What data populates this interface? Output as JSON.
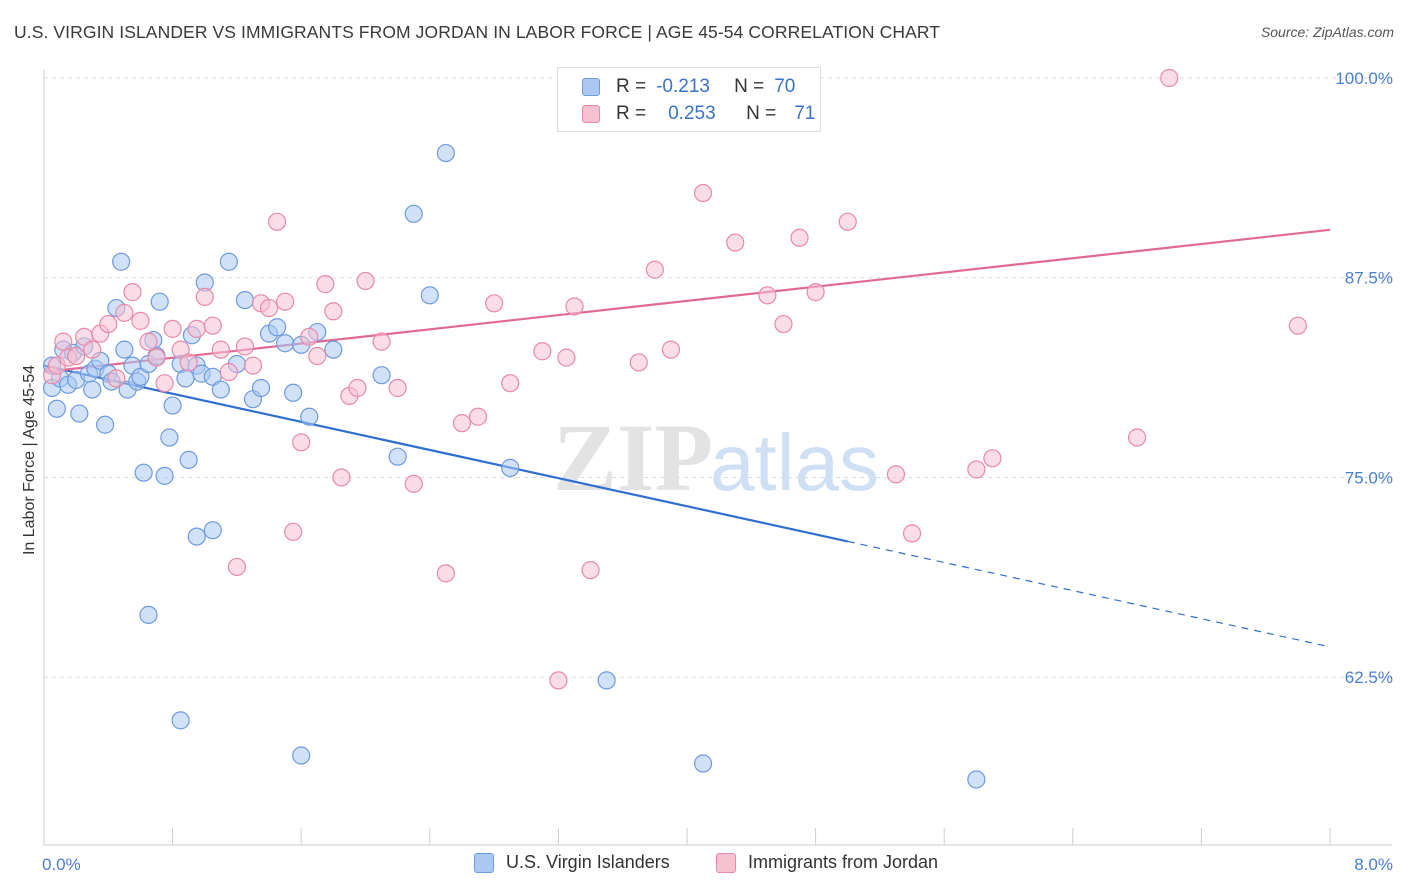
{
  "title": "U.S. VIRGIN ISLANDER VS IMMIGRANTS FROM JORDAN IN LABOR FORCE | AGE 45-54 CORRELATION CHART",
  "source": "Source: ZipAtlas.com",
  "colors": {
    "blue_fill": "#aac8f2",
    "blue_stroke": "#6e9be0",
    "blue_line": "#2f6fd0",
    "pink_fill": "#f6c1d1",
    "pink_stroke": "#e88aa8",
    "pink_line": "#e06a94",
    "tick_text": "#4a7fd0",
    "grid": "#dcdcdc"
  },
  "legend": {
    "rows": [
      {
        "r_label": "R =",
        "r_value": "-0.213",
        "n_label": "N =",
        "n_value": "70"
      },
      {
        "r_label": "R =",
        "r_value": "0.253",
        "n_label": "N =",
        "n_value": "71"
      }
    ]
  },
  "watermark": {
    "zip": "ZIP",
    "atlas": "atlas"
  },
  "chart_data": {
    "type": "scatter",
    "xlabel": "",
    "ylabel": "In Labor Force | Age 45-54",
    "xlim": [
      0,
      8
    ],
    "ylim": [
      52,
      101
    ],
    "x_tick_labels": [
      {
        "value": 0,
        "label": "0.0%"
      },
      {
        "value": 8,
        "label": "8.0%"
      }
    ],
    "y_tick_labels": [
      {
        "value": 100,
        "label": "100.0%"
      },
      {
        "value": 87.5,
        "label": "87.5%"
      },
      {
        "value": 75,
        "label": "75.0%"
      },
      {
        "value": 62.5,
        "label": "62.5%"
      }
    ],
    "grid": "horizontal dashed",
    "series": [
      {
        "name": "U.S. Virgin Islanders",
        "color": "#6e9be0",
        "trend": {
          "x0": 0,
          "y0": 82.0,
          "x1": 5.0,
          "y1": 71.0,
          "dashed_to_x": 8.0,
          "dashed_to_y": 64.4
        },
        "points": [
          [
            0.05,
            82.0
          ],
          [
            0.05,
            80.6
          ],
          [
            0.08,
            79.3
          ],
          [
            0.1,
            81.2
          ],
          [
            0.12,
            83.0
          ],
          [
            0.15,
            80.8
          ],
          [
            0.18,
            82.8
          ],
          [
            0.2,
            81.1
          ],
          [
            0.22,
            79.0
          ],
          [
            0.25,
            83.2
          ],
          [
            0.28,
            81.5
          ],
          [
            0.3,
            80.5
          ],
          [
            0.32,
            81.8
          ],
          [
            0.35,
            82.3
          ],
          [
            0.38,
            78.3
          ],
          [
            0.4,
            81.5
          ],
          [
            0.42,
            81.0
          ],
          [
            0.45,
            85.6
          ],
          [
            0.48,
            88.5
          ],
          [
            0.5,
            83.0
          ],
          [
            0.52,
            80.5
          ],
          [
            0.55,
            82.0
          ],
          [
            0.58,
            81.0
          ],
          [
            0.6,
            81.3
          ],
          [
            0.62,
            75.3
          ],
          [
            0.65,
            82.1
          ],
          [
            0.68,
            83.6
          ],
          [
            0.7,
            82.6
          ],
          [
            0.72,
            86.0
          ],
          [
            0.75,
            75.1
          ],
          [
            0.78,
            77.5
          ],
          [
            0.8,
            79.5
          ],
          [
            0.85,
            82.1
          ],
          [
            0.88,
            81.2
          ],
          [
            0.9,
            76.1
          ],
          [
            0.92,
            83.9
          ],
          [
            0.95,
            82.0
          ],
          [
            0.98,
            81.5
          ],
          [
            1.0,
            87.2
          ],
          [
            1.05,
            81.3
          ],
          [
            1.1,
            80.5
          ],
          [
            1.15,
            88.5
          ],
          [
            1.2,
            82.1
          ],
          [
            1.25,
            86.1
          ],
          [
            1.3,
            79.9
          ],
          [
            1.35,
            80.6
          ],
          [
            1.4,
            84.0
          ],
          [
            1.45,
            84.4
          ],
          [
            1.5,
            83.4
          ],
          [
            1.55,
            80.3
          ],
          [
            1.6,
            83.3
          ],
          [
            1.65,
            78.8
          ],
          [
            1.7,
            84.1
          ],
          [
            1.8,
            83.0
          ],
          [
            2.1,
            81.4
          ],
          [
            2.2,
            76.3
          ],
          [
            2.3,
            91.5
          ],
          [
            2.4,
            86.4
          ],
          [
            2.5,
            95.3
          ],
          [
            2.9,
            75.6
          ],
          [
            3.7,
            100.0
          ],
          [
            4.4,
            99.0
          ],
          [
            0.65,
            66.4
          ],
          [
            0.85,
            59.8
          ],
          [
            1.05,
            71.7
          ],
          [
            0.95,
            71.3
          ],
          [
            1.6,
            57.6
          ],
          [
            3.5,
            62.3
          ],
          [
            4.1,
            57.1
          ],
          [
            5.8,
            56.1
          ]
        ]
      },
      {
        "name": "Immigrants from Jordan",
        "color": "#e88aa8",
        "trend": {
          "x0": 0,
          "y0": 81.6,
          "x1": 8.0,
          "y1": 90.5
        },
        "points": [
          [
            0.05,
            81.4
          ],
          [
            0.08,
            82.0
          ],
          [
            0.12,
            83.5
          ],
          [
            0.15,
            82.5
          ],
          [
            0.2,
            82.6
          ],
          [
            0.25,
            83.8
          ],
          [
            0.3,
            83.0
          ],
          [
            0.35,
            84.0
          ],
          [
            0.4,
            84.6
          ],
          [
            0.45,
            81.2
          ],
          [
            0.5,
            85.3
          ],
          [
            0.55,
            86.6
          ],
          [
            0.6,
            84.8
          ],
          [
            0.65,
            83.5
          ],
          [
            0.7,
            82.5
          ],
          [
            0.75,
            80.9
          ],
          [
            0.8,
            84.3
          ],
          [
            0.85,
            83.0
          ],
          [
            0.9,
            82.2
          ],
          [
            0.95,
            84.3
          ],
          [
            1.0,
            86.3
          ],
          [
            1.05,
            84.5
          ],
          [
            1.1,
            83.0
          ],
          [
            1.15,
            81.6
          ],
          [
            1.2,
            69.4
          ],
          [
            1.25,
            83.2
          ],
          [
            1.3,
            82.0
          ],
          [
            1.35,
            85.9
          ],
          [
            1.4,
            85.6
          ],
          [
            1.45,
            91.0
          ],
          [
            1.5,
            86.0
          ],
          [
            1.55,
            71.6
          ],
          [
            1.6,
            77.2
          ],
          [
            1.65,
            83.8
          ],
          [
            1.7,
            82.6
          ],
          [
            1.75,
            87.1
          ],
          [
            1.8,
            85.4
          ],
          [
            1.85,
            75.0
          ],
          [
            1.9,
            80.1
          ],
          [
            1.95,
            80.6
          ],
          [
            2.0,
            87.3
          ],
          [
            2.1,
            83.5
          ],
          [
            2.2,
            80.6
          ],
          [
            2.3,
            74.6
          ],
          [
            2.5,
            69.0
          ],
          [
            2.6,
            78.4
          ],
          [
            2.7,
            78.8
          ],
          [
            2.8,
            85.9
          ],
          [
            2.9,
            80.9
          ],
          [
            3.1,
            82.9
          ],
          [
            3.2,
            62.3
          ],
          [
            3.25,
            82.5
          ],
          [
            3.3,
            85.7
          ],
          [
            3.4,
            69.2
          ],
          [
            3.7,
            82.2
          ],
          [
            3.8,
            88.0
          ],
          [
            3.9,
            83.0
          ],
          [
            4.1,
            92.8
          ],
          [
            4.3,
            89.7
          ],
          [
            4.5,
            86.4
          ],
          [
            4.6,
            84.6
          ],
          [
            4.7,
            90.0
          ],
          [
            4.8,
            86.6
          ],
          [
            5.0,
            91.0
          ],
          [
            5.3,
            75.2
          ],
          [
            5.4,
            71.5
          ],
          [
            5.8,
            75.5
          ],
          [
            5.9,
            76.2
          ],
          [
            6.8,
            77.5
          ],
          [
            7.0,
            100.0
          ],
          [
            7.8,
            84.5
          ]
        ]
      }
    ]
  },
  "bottom_legend": [
    "U.S. Virgin Islanders",
    "Immigrants from Jordan"
  ]
}
